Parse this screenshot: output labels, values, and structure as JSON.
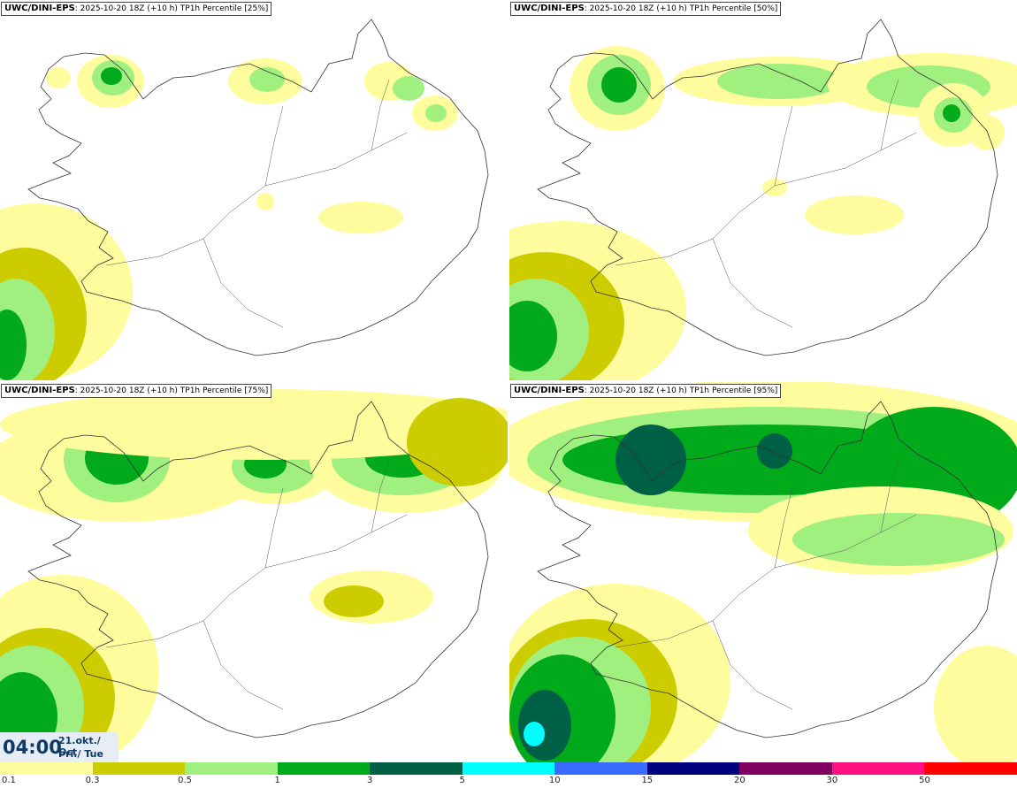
{
  "panels": [
    {
      "model": "UWC/DINI-EPS",
      "run": "2025-10-20 18Z (+10 h)",
      "field": "TP1h Percentile [25%]",
      "percentile": 25
    },
    {
      "model": "UWC/DINI-EPS",
      "run": "2025-10-20 18Z (+10 h)",
      "field": "TP1h Percentile [50%]",
      "percentile": 50
    },
    {
      "model": "UWC/DINI-EPS",
      "run": "2025-10-20 18Z (+10 h)",
      "field": "TP1h Percentile [75%]",
      "percentile": 75
    },
    {
      "model": "UWC/DINI-EPS",
      "run": "2025-10-20 18Z (+10 h)",
      "field": "TP1h Percentile [95%]",
      "percentile": 95
    }
  ],
  "valid_time": {
    "clock": "04:00",
    "date": "21.okt./ Oct",
    "day": "Þri./ Tue"
  },
  "colorbar": {
    "labels": [
      "0.1",
      "0.3",
      "0.5",
      "1",
      "3",
      "5",
      "10",
      "15",
      "20",
      "30",
      "50"
    ],
    "colors": [
      "#fffc9e",
      "#cccc00",
      "#a0f080",
      "#00aa1a",
      "#006045",
      "#00ffff",
      "#3a6aff",
      "#000080",
      "#800060",
      "#ff1080",
      "#ff0000"
    ]
  }
}
